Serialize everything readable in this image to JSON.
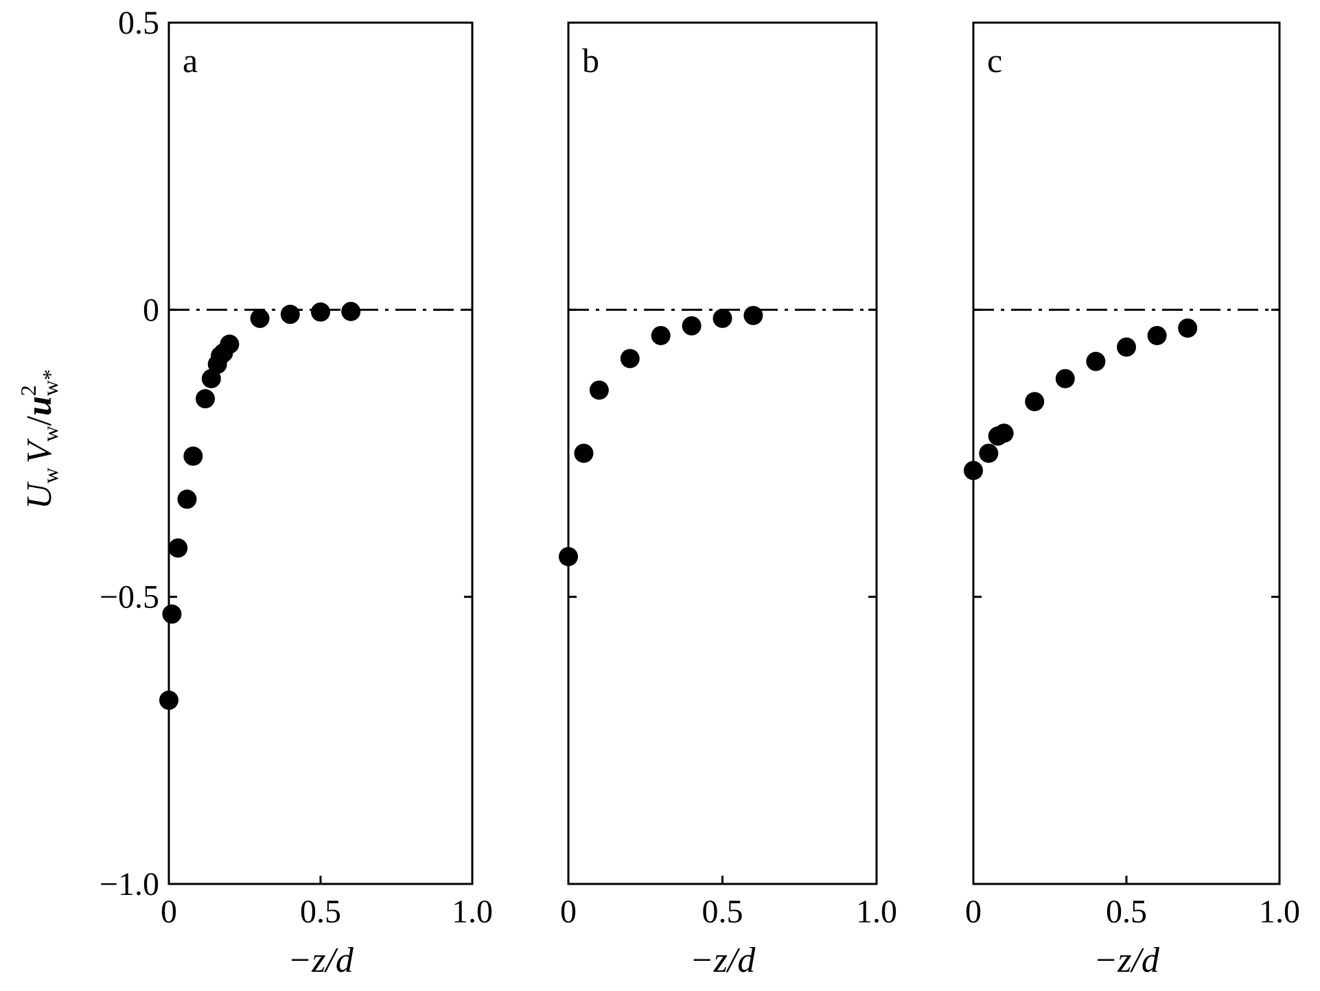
{
  "chart_data": [
    {
      "type": "scatter",
      "panel_label": "a",
      "xlabel": "−z/d",
      "ylabel": "U_w V_w / u_w*²",
      "xlim": [
        0,
        1.0
      ],
      "ylim": [
        -1.0,
        0.5
      ],
      "x_ticks": [
        "0",
        "0.5",
        "1.0"
      ],
      "y_ticks": [
        "0.5",
        "0",
        "−0.5",
        "−1.0"
      ],
      "reference_line": {
        "y": 0,
        "style": "dash-dot"
      },
      "series": [
        {
          "x": [
            0.0,
            0.01,
            0.03,
            0.06,
            0.08,
            0.12,
            0.14,
            0.16,
            0.17,
            0.18,
            0.2,
            0.3,
            0.4,
            0.5,
            0.6
          ],
          "y": [
            -0.68,
            -0.53,
            -0.415,
            -0.33,
            -0.255,
            -0.155,
            -0.12,
            -0.095,
            -0.08,
            -0.075,
            -0.06,
            -0.015,
            -0.008,
            -0.004,
            -0.003
          ]
        }
      ]
    },
    {
      "type": "scatter",
      "panel_label": "b",
      "xlabel": "−z/d",
      "xlim": [
        0,
        1.0
      ],
      "ylim": [
        -1.0,
        0.5
      ],
      "x_ticks": [
        "0",
        "0.5",
        "1.0"
      ],
      "reference_line": {
        "y": 0,
        "style": "dash-dot"
      },
      "series": [
        {
          "x": [
            0.0,
            0.05,
            0.1,
            0.2,
            0.3,
            0.4,
            0.5,
            0.6
          ],
          "y": [
            -0.43,
            -0.25,
            -0.14,
            -0.085,
            -0.045,
            -0.028,
            -0.015,
            -0.01
          ]
        }
      ]
    },
    {
      "type": "scatter",
      "panel_label": "c",
      "xlabel": "−z/d",
      "xlim": [
        0,
        1.0
      ],
      "ylim": [
        -1.0,
        0.5
      ],
      "x_ticks": [
        "0",
        "0.5",
        "1.0"
      ],
      "reference_line": {
        "y": 0,
        "style": "dash-dot"
      },
      "series": [
        {
          "x": [
            0.0,
            0.05,
            0.08,
            0.1,
            0.2,
            0.3,
            0.4,
            0.5,
            0.6,
            0.7
          ],
          "y": [
            -0.28,
            -0.25,
            -0.22,
            -0.215,
            -0.16,
            -0.12,
            -0.09,
            -0.065,
            -0.045,
            -0.032
          ]
        }
      ]
    }
  ],
  "colors": {
    "marker": "#000000",
    "axis": "#000000",
    "background": "#ffffff"
  }
}
